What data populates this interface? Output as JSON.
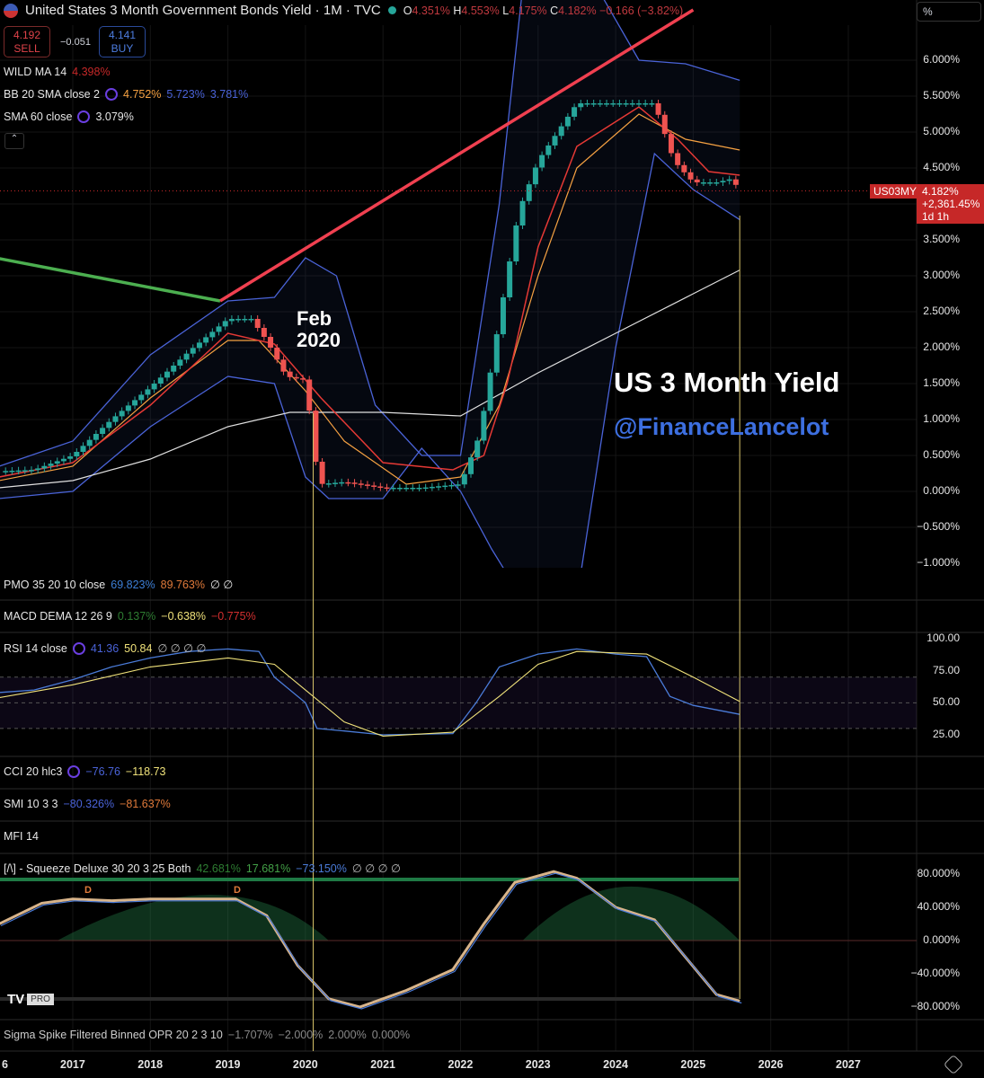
{
  "header": {
    "title": "United States 3 Month Government Bonds Yield · 1M · TVC",
    "ohlc": {
      "o_label": "O",
      "o": "4.351%",
      "h_label": "H",
      "h": "4.553%",
      "l_label": "L",
      "l": "4.175%",
      "c_label": "C",
      "c": "4.182%",
      "change": "−0.166 (−3.82%)"
    },
    "scale_button": "%"
  },
  "trade": {
    "sell_price": "4.192",
    "sell_label": "SELL",
    "spread": "−0.051",
    "buy_price": "4.141",
    "buy_label": "BUY"
  },
  "legends": {
    "wild": {
      "name": "WILD MA 14",
      "v1": "4.398%"
    },
    "bb": {
      "name": "BB 20 SMA close 2",
      "v1": "4.752%",
      "v2": "5.723%",
      "v3": "3.781%"
    },
    "sma": {
      "name": "SMA 60 close",
      "v1": "3.079%"
    },
    "pmo": {
      "name": "PMO 35 20 10 close",
      "v1": "69.823%",
      "v2": "89.763%",
      "v3": "∅ ∅"
    },
    "macd": {
      "name": "MACD DEMA 12 26 9",
      "v1": "0.137%",
      "v2": "−0.638%",
      "v3": "−0.775%"
    },
    "rsi": {
      "name": "RSI 14 close",
      "v1": "41.36",
      "v2": "50.84",
      "v3": "∅ ∅ ∅ ∅"
    },
    "cci": {
      "name": "CCI 20 hlc3",
      "v1": "−76.76",
      "v2": "−118.73"
    },
    "smi": {
      "name": "SMI 10 3 3",
      "v1": "−80.326%",
      "v2": "−81.637%"
    },
    "mfi": {
      "name": "MFI 14"
    },
    "squeeze": {
      "name": "[/\\] - Squeeze Deluxe 30 20 3 25 Both",
      "v1": "42.681%",
      "v2": "17.681%",
      "v3": "−73.150%",
      "v4": "∅ ∅ ∅ ∅"
    },
    "sigma": {
      "name": "Sigma Spike Filtered Binned OPR 20 2 3 10",
      "v1": "−1.707%",
      "v2": "−2.000%",
      "v3": "2.000%",
      "v4": "0.000%"
    }
  },
  "annotations": {
    "feb": "Feb",
    "feb_year": "2020",
    "title": "US 3 Month Yield",
    "handle": "@FinanceLancelot",
    "d_marker": "D"
  },
  "last_price": {
    "symbol": "US03MY",
    "price": "4.182%",
    "change": "+2,361.45%",
    "countdown": "1d 1h"
  },
  "logo": "PRO",
  "colors": {
    "up": "#26a69a",
    "down": "#ef5350",
    "bb": "#4a63d8",
    "wild": "#e53935",
    "sma": "#e0e0e0",
    "red_trend": "#f04050",
    "green_trend": "#4caf50",
    "bb_basis": "#f5a142"
  },
  "chart_data": {
    "type": "candlestick",
    "title": "United States 3 Month Government Bonds Yield",
    "ylabel": "%",
    "ylim": [
      -1.0,
      6.5
    ],
    "price_ticks": [
      "6.000%",
      "5.500%",
      "5.000%",
      "4.500%",
      "3.500%",
      "3.000%",
      "2.500%",
      "2.000%",
      "1.500%",
      "1.000%",
      "0.500%",
      "0.000%",
      "−0.500%",
      "−1.000%"
    ],
    "time_ticks": [
      "6",
      "2017",
      "2018",
      "2019",
      "2020",
      "2021",
      "2022",
      "2023",
      "2024",
      "2025",
      "2026",
      "2027"
    ],
    "yield_path": [
      [
        2016.05,
        0.28
      ],
      [
        2016.5,
        0.3
      ],
      [
        2017.0,
        0.5
      ],
      [
        2017.5,
        1.0
      ],
      [
        2018.0,
        1.45
      ],
      [
        2018.5,
        1.95
      ],
      [
        2019.0,
        2.4
      ],
      [
        2019.3,
        2.4
      ],
      [
        2019.5,
        2.1
      ],
      [
        2019.75,
        1.6
      ],
      [
        2020.0,
        1.55
      ],
      [
        2020.17,
        0.1
      ],
      [
        2020.5,
        0.13
      ],
      [
        2021.0,
        0.05
      ],
      [
        2021.5,
        0.05
      ],
      [
        2022.0,
        0.1
      ],
      [
        2022.25,
        0.8
      ],
      [
        2022.5,
        2.4
      ],
      [
        2022.75,
        3.9
      ],
      [
        2023.0,
        4.6
      ],
      [
        2023.25,
        5.0
      ],
      [
        2023.5,
        5.4
      ],
      [
        2024.0,
        5.4
      ],
      [
        2024.5,
        5.4
      ],
      [
        2024.75,
        4.6
      ],
      [
        2025.0,
        4.3
      ],
      [
        2025.3,
        4.3
      ],
      [
        2025.5,
        4.35
      ],
      [
        2025.6,
        4.18
      ]
    ],
    "sma60": [
      [
        2016.05,
        0.05
      ],
      [
        2017,
        0.15
      ],
      [
        2018,
        0.45
      ],
      [
        2019,
        0.9
      ],
      [
        2019.8,
        1.1
      ],
      [
        2021,
        1.1
      ],
      [
        2022,
        1.05
      ],
      [
        2023,
        1.65
      ],
      [
        2024,
        2.2
      ],
      [
        2025,
        2.75
      ],
      [
        2025.6,
        3.08
      ]
    ],
    "wild_ma": [
      [
        2016.05,
        0.2
      ],
      [
        2017,
        0.4
      ],
      [
        2018,
        1.2
      ],
      [
        2019,
        2.2
      ],
      [
        2019.6,
        2.05
      ],
      [
        2020.2,
        1.3
      ],
      [
        2021,
        0.4
      ],
      [
        2021.9,
        0.3
      ],
      [
        2022.3,
        0.5
      ],
      [
        2022.6,
        1.5
      ],
      [
        2023,
        3.4
      ],
      [
        2023.5,
        4.8
      ],
      [
        2024.3,
        5.35
      ],
      [
        2024.8,
        4.9
      ],
      [
        2025.2,
        4.45
      ],
      [
        2025.6,
        4.4
      ]
    ],
    "bb_upper": [
      [
        2016.05,
        0.35
      ],
      [
        2017,
        0.7
      ],
      [
        2018,
        1.9
      ],
      [
        2019,
        2.65
      ],
      [
        2019.6,
        2.7
      ],
      [
        2020.0,
        3.25
      ],
      [
        2020.4,
        3.0
      ],
      [
        2020.9,
        1.2
      ],
      [
        2021.5,
        0.5
      ],
      [
        2022.0,
        0.5
      ],
      [
        2022.5,
        4.0
      ],
      [
        2022.8,
        7.0
      ],
      [
        2023.5,
        7.5
      ],
      [
        2024.3,
        6.0
      ],
      [
        2024.9,
        5.95
      ],
      [
        2025.6,
        5.72
      ]
    ],
    "bb_lower": [
      [
        2016.05,
        -0.1
      ],
      [
        2017,
        0.0
      ],
      [
        2018,
        0.9
      ],
      [
        2019,
        1.6
      ],
      [
        2019.6,
        1.5
      ],
      [
        2020.0,
        0.2
      ],
      [
        2020.3,
        -0.1
      ],
      [
        2021.0,
        -0.1
      ],
      [
        2021.5,
        0.6
      ],
      [
        2022.0,
        0.0
      ],
      [
        2022.4,
        -0.8
      ],
      [
        2022.8,
        -1.5
      ],
      [
        2023.5,
        -1.5
      ],
      [
        2024.0,
        2.0
      ],
      [
        2024.5,
        4.7
      ],
      [
        2025.0,
        4.2
      ],
      [
        2025.6,
        3.78
      ]
    ],
    "bb_basis": [
      [
        2016.05,
        0.15
      ],
      [
        2017,
        0.35
      ],
      [
        2018,
        1.3
      ],
      [
        2019,
        2.1
      ],
      [
        2019.4,
        2.1
      ],
      [
        2020.0,
        1.4
      ],
      [
        2020.5,
        0.7
      ],
      [
        2021.3,
        0.1
      ],
      [
        2022.0,
        0.2
      ],
      [
        2022.5,
        1.2
      ],
      [
        2023.0,
        3.0
      ],
      [
        2023.5,
        4.5
      ],
      [
        2024.3,
        5.25
      ],
      [
        2024.9,
        4.9
      ],
      [
        2025.6,
        4.75
      ]
    ],
    "trendlines": [
      {
        "color": "green",
        "from": [
          2016.0,
          3.25
        ],
        "to": [
          2018.9,
          2.65
        ]
      },
      {
        "color": "red",
        "from": [
          2018.9,
          2.65
        ],
        "to": [
          2025.0,
          6.7
        ]
      }
    ],
    "rsi": {
      "ylim": [
        0,
        100
      ],
      "ticks": [
        "100.00",
        "75.00",
        "50.00",
        "25.00"
      ],
      "rsi": [
        [
          2016.05,
          58
        ],
        [
          2016.5,
          60
        ],
        [
          2017,
          68
        ],
        [
          2017.5,
          78
        ],
        [
          2018,
          85
        ],
        [
          2018.5,
          90
        ],
        [
          2019,
          92
        ],
        [
          2019.4,
          90
        ],
        [
          2019.6,
          70
        ],
        [
          2020.0,
          50
        ],
        [
          2020.15,
          30
        ],
        [
          2020.5,
          28
        ],
        [
          2021.0,
          25
        ],
        [
          2021.9,
          26
        ],
        [
          2022.2,
          50
        ],
        [
          2022.5,
          78
        ],
        [
          2023,
          88
        ],
        [
          2023.5,
          92
        ],
        [
          2024.0,
          88
        ],
        [
          2024.4,
          86
        ],
        [
          2024.7,
          55
        ],
        [
          2025.0,
          48
        ],
        [
          2025.6,
          41
        ]
      ],
      "signal": [
        [
          2016.05,
          54
        ],
        [
          2017,
          64
        ],
        [
          2018,
          78
        ],
        [
          2019,
          85
        ],
        [
          2019.6,
          80
        ],
        [
          2020.0,
          60
        ],
        [
          2020.5,
          35
        ],
        [
          2021.0,
          24
        ],
        [
          2021.9,
          27
        ],
        [
          2022.5,
          55
        ],
        [
          2023.0,
          80
        ],
        [
          2023.5,
          90
        ],
        [
          2024.4,
          88
        ],
        [
          2025.0,
          70
        ],
        [
          2025.6,
          51
        ]
      ]
    },
    "squeeze": {
      "ylim": [
        -100,
        100
      ],
      "ticks": [
        "80.000%",
        "40.000%",
        "0.000%",
        "−40.000%",
        "−80.000%"
      ],
      "momentum": [
        [
          2016.05,
          20
        ],
        [
          2016.6,
          45
        ],
        [
          2017.0,
          50
        ],
        [
          2017.5,
          48
        ],
        [
          2018.0,
          50
        ],
        [
          2018.6,
          50
        ],
        [
          2019.1,
          50
        ],
        [
          2019.5,
          30
        ],
        [
          2019.9,
          -30
        ],
        [
          2020.3,
          -70
        ],
        [
          2020.7,
          -80
        ],
        [
          2021.3,
          -60
        ],
        [
          2021.9,
          -35
        ],
        [
          2022.3,
          20
        ],
        [
          2022.7,
          70
        ],
        [
          2023.2,
          83
        ],
        [
          2023.5,
          75
        ],
        [
          2024.0,
          40
        ],
        [
          2024.5,
          25
        ],
        [
          2024.9,
          -20
        ],
        [
          2025.3,
          -65
        ],
        [
          2025.6,
          -73
        ]
      ]
    }
  }
}
